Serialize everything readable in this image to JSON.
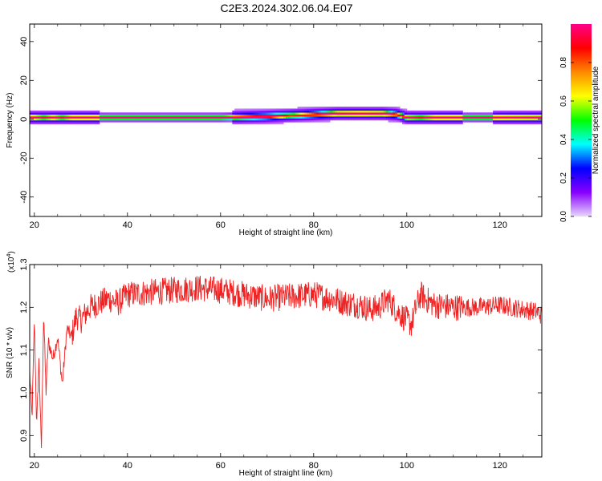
{
  "title": "C2E3.2024.302.06.04.E07",
  "chart_data": [
    {
      "type": "heatmap",
      "xlabel": "Height of straight line (km)",
      "ylabel": "Frequency (Hz)",
      "xlim": [
        19,
        129
      ],
      "ylim": [
        -50,
        49
      ],
      "x_ticks": [
        20,
        40,
        60,
        80,
        100,
        120
      ],
      "y_ticks": [
        -40,
        -20,
        0,
        20,
        40
      ],
      "colorbar": {
        "label": "Normalized spectral amplitude",
        "range": [
          0,
          1
        ],
        "ticks": [
          "0.0",
          "0.2",
          "0.4",
          "0.6",
          "0.8"
        ],
        "colors": [
          "#e8d8ff",
          "#8800ff",
          "#0000ff",
          "#00ffff",
          "#00ff00",
          "#ffff00",
          "#ff8800",
          "#ff0000",
          "#ff0088"
        ]
      },
      "ridge": [
        {
          "x": 20,
          "f": 1.0,
          "a": 0.95
        },
        {
          "x": 22,
          "f": 1.0,
          "a": 0.7
        },
        {
          "x": 24,
          "f": 1.0,
          "a": 0.95
        },
        {
          "x": 26,
          "f": 1.0,
          "a": 0.7
        },
        {
          "x": 28,
          "f": 1.0,
          "a": 0.95
        },
        {
          "x": 40,
          "f": 1.0,
          "a": 0.95
        },
        {
          "x": 60,
          "f": 1.0,
          "a": 0.95
        },
        {
          "x": 70,
          "f": 1.5,
          "a": 0.9
        },
        {
          "x": 75,
          "f": 2.0,
          "a": 0.6
        },
        {
          "x": 80,
          "f": 2.5,
          "a": 0.75
        },
        {
          "x": 85,
          "f": 3.0,
          "a": 0.9
        },
        {
          "x": 90,
          "f": 3.0,
          "a": 0.95
        },
        {
          "x": 95,
          "f": 3.0,
          "a": 0.9
        },
        {
          "x": 98,
          "f": 2.5,
          "a": 0.7
        },
        {
          "x": 100,
          "f": 1.0,
          "a": 0.85
        },
        {
          "x": 103,
          "f": 1.0,
          "a": 0.7
        },
        {
          "x": 106,
          "f": 1.0,
          "a": 0.95
        },
        {
          "x": 120,
          "f": 1.0,
          "a": 0.95
        },
        {
          "x": 129,
          "f": 1.0,
          "a": 0.9
        }
      ]
    },
    {
      "type": "line",
      "xlabel": "Height of straight line (km)",
      "ylabel": "SNR (10 * v/v)",
      "y_multiplier": "(x10",
      "y_multiplier_exp": "4",
      "xlim": [
        19,
        129
      ],
      "ylim": [
        0.85,
        1.3
      ],
      "x_ticks": [
        20,
        40,
        60,
        80,
        100,
        120
      ],
      "y_ticks": [
        "0.9",
        "1.0",
        "1.1",
        "1.2",
        "1.3"
      ],
      "series": [
        {
          "color": "#ee2222",
          "x": [
            19,
            19.5,
            20,
            20.5,
            21,
            21.5,
            22,
            22.5,
            23,
            24,
            25,
            26,
            27,
            28,
            29,
            30,
            32,
            34,
            36,
            38,
            40,
            45,
            50,
            55,
            60,
            65,
            70,
            75,
            80,
            84,
            87,
            90,
            92,
            94,
            96,
            98,
            100,
            101,
            102,
            103,
            104,
            106,
            110,
            115,
            120,
            125,
            128,
            129
          ],
          "y": [
            1.05,
            0.94,
            1.17,
            0.92,
            1.08,
            0.86,
            1.19,
            1.0,
            1.12,
            1.08,
            1.13,
            1.02,
            1.15,
            1.13,
            1.18,
            1.17,
            1.2,
            1.21,
            1.22,
            1.21,
            1.23,
            1.235,
            1.24,
            1.245,
            1.24,
            1.23,
            1.22,
            1.225,
            1.23,
            1.22,
            1.21,
            1.205,
            1.195,
            1.2,
            1.22,
            1.19,
            1.17,
            1.16,
            1.2,
            1.23,
            1.22,
            1.205,
            1.2,
            1.2,
            1.205,
            1.195,
            1.19,
            1.18
          ]
        }
      ],
      "noise": 0.04
    }
  ]
}
